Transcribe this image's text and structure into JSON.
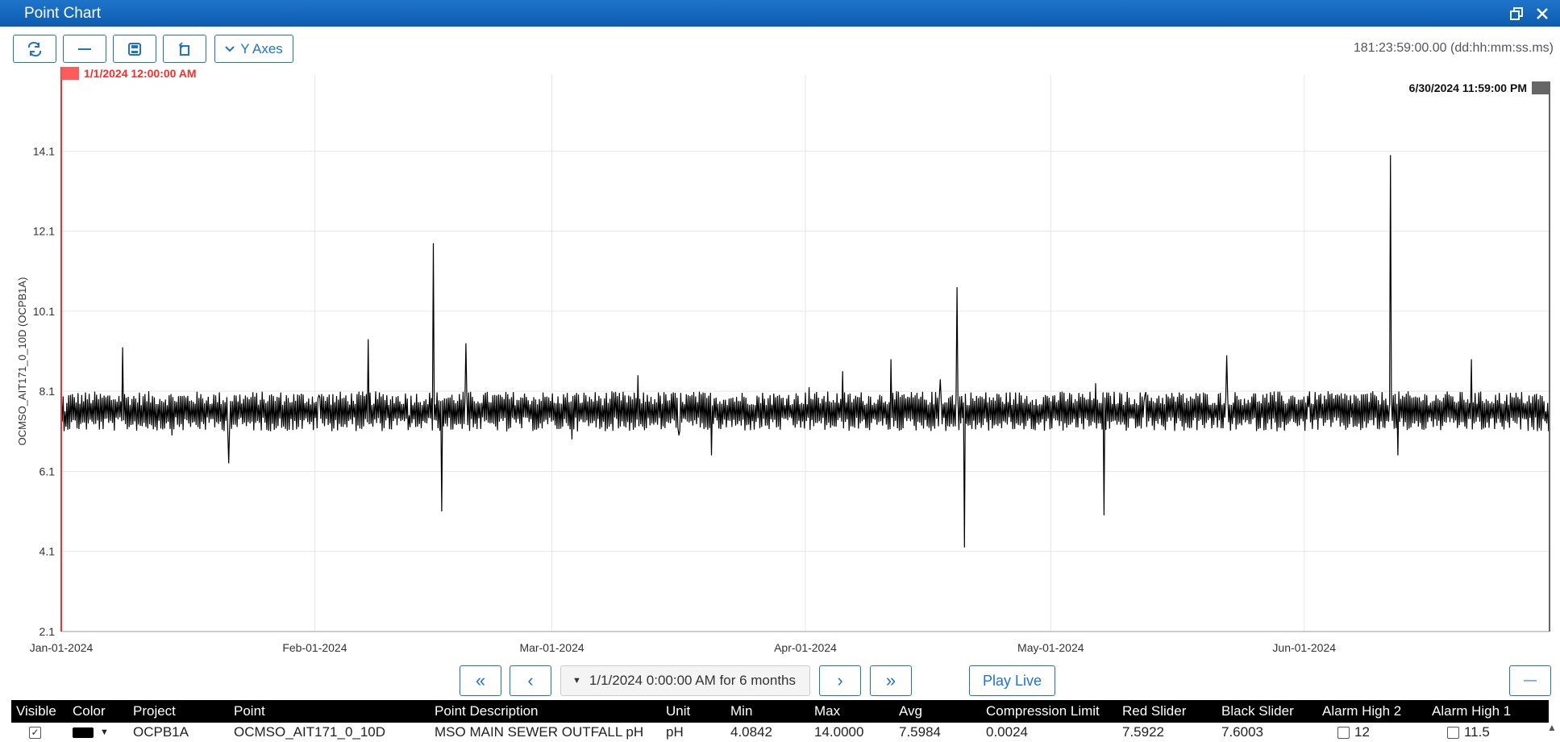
{
  "window": {
    "title": "Point Chart"
  },
  "toolbar": {
    "refresh_icon": "refresh-icon",
    "minus_icon": "minus-icon",
    "save_icon": "save-icon",
    "rotate_icon": "rotate-icon",
    "y_axes_label": "Y Axes",
    "duration": "181:23:59:00.00 (dd:hh:mm:ss.ms)"
  },
  "chart_data": {
    "type": "line",
    "ylabel": "OCMSO_AIT171_0_10D (OCPB1A)",
    "yticks": [
      "2.1",
      "4.1",
      "6.1",
      "8.1",
      "10.1",
      "12.1",
      "14.1"
    ],
    "ylim": [
      2.1,
      16.0
    ],
    "xlabels": [
      "Jan-01-2024",
      "Feb-01-2024",
      "Mar-01-2024",
      "Apr-01-2024",
      "May-01-2024",
      "Jun-01-2024"
    ],
    "xlim": [
      "2024-01-01",
      "2024-06-30"
    ],
    "grid": true,
    "red_slider_label": "1/1/2024 12:00:00 AM",
    "black_slider_label": "6/30/2024 11:59:00 PM",
    "line_color": "#000000",
    "red_slider_color": "#ff2a2a",
    "black_slider_color": "#666666",
    "baseline": 7.6,
    "series": [
      {
        "values": [
          [
            "2024-01-01",
            7.6
          ],
          [
            "2024-01-08",
            9.2
          ],
          [
            "2024-01-14",
            7.0
          ],
          [
            "2024-01-21",
            6.3
          ],
          [
            "2024-02-01",
            8.0
          ],
          [
            "2024-02-07",
            9.4
          ],
          [
            "2024-02-12",
            7.5
          ],
          [
            "2024-02-15",
            11.8
          ],
          [
            "2024-02-16",
            5.1
          ],
          [
            "2024-02-19",
            9.3
          ],
          [
            "2024-02-24",
            7.1
          ],
          [
            "2024-03-01",
            7.8
          ],
          [
            "2024-03-03",
            6.9
          ],
          [
            "2024-03-11",
            8.5
          ],
          [
            "2024-03-16",
            7.0
          ],
          [
            "2024-03-20",
            6.5
          ],
          [
            "2024-04-01",
            8.2
          ],
          [
            "2024-04-05",
            8.6
          ],
          [
            "2024-04-11",
            8.9
          ],
          [
            "2024-04-17",
            8.4
          ],
          [
            "2024-04-19",
            10.7
          ],
          [
            "2024-04-20",
            4.2
          ],
          [
            "2024-04-26",
            7.9
          ],
          [
            "2024-05-01",
            8.0
          ],
          [
            "2024-05-06",
            8.3
          ],
          [
            "2024-05-07",
            5.0
          ],
          [
            "2024-05-12",
            8.0
          ],
          [
            "2024-05-22",
            9.0
          ],
          [
            "2024-06-01",
            7.7
          ],
          [
            "2024-06-11",
            14.0
          ],
          [
            "2024-06-12",
            6.5
          ],
          [
            "2024-06-21",
            8.9
          ],
          [
            "2024-06-30",
            7.6
          ]
        ]
      }
    ]
  },
  "nav": {
    "first": "«",
    "prev": "‹",
    "range": "1/1/2024 0:00:00 AM for 6 months",
    "next": "›",
    "last": "»",
    "play_live": "Play Live",
    "collapse": "—"
  },
  "table": {
    "headers": [
      "Visible",
      "Color",
      "Project",
      "Point",
      "Point Description",
      "Unit",
      "Min",
      "Max",
      "Avg",
      "Compression Limit",
      "Red Slider",
      "Black Slider",
      "Alarm High 2",
      "Alarm High 1"
    ],
    "rows": [
      {
        "visible": "✓",
        "color": "#000000",
        "project": "OCPB1A",
        "point": "OCMSO_AIT171_0_10D",
        "description": "MSO MAIN SEWER OUTFALL pH",
        "unit": "pH",
        "min": "4.0842",
        "max": "14.0000",
        "avg": "7.5984",
        "compression": "0.0024",
        "red_slider": "7.5922",
        "black_slider": "7.6003",
        "alarm_high_2": "12",
        "alarm_high_1": "11.5"
      }
    ]
  }
}
